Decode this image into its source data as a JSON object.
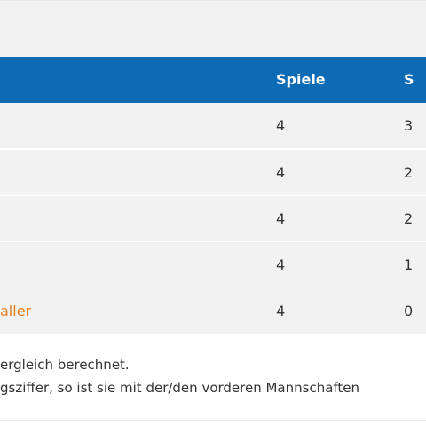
{
  "table": {
    "headers": {
      "spiele": "Spiele",
      "s": "S"
    },
    "rows": [
      {
        "name": "",
        "spiele": "4",
        "s": "3"
      },
      {
        "name": "",
        "spiele": "4",
        "s": "2"
      },
      {
        "name": "",
        "spiele": "4",
        "s": "2"
      },
      {
        "name": "",
        "spiele": "4",
        "s": "1"
      },
      {
        "name": "aller",
        "spiele": "4",
        "s": "0"
      }
    ]
  },
  "notes": [
    "ergleich berechnet.",
    "gsziffer, so ist sie mit der/den vorderen Mannschaften"
  ],
  "colors": {
    "header_bg": "#0d6ab5",
    "row_bg": "#f2f2f2",
    "link": "#e67e22"
  }
}
